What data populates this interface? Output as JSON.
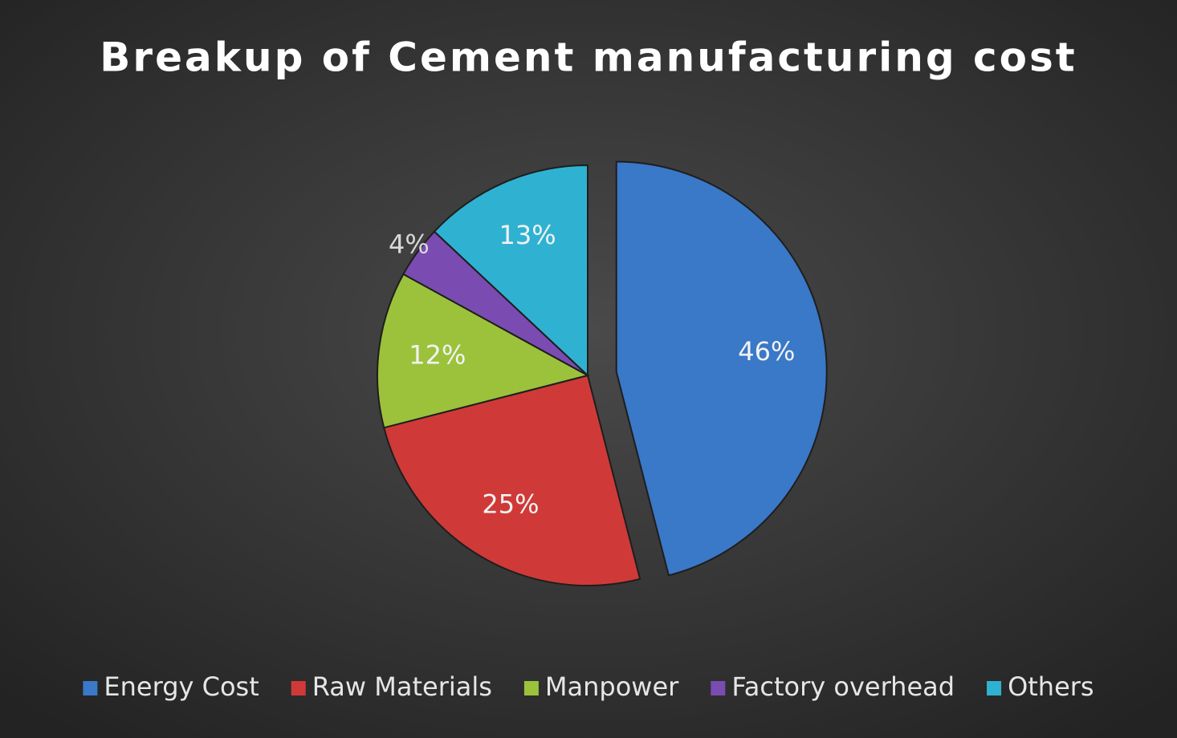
{
  "chart_data": {
    "type": "pie",
    "title": "Breakup of Cement manufacturing cost",
    "categories": [
      "Energy Cost",
      "Raw Materials",
      "Manpower",
      "Factory overhead",
      "Others"
    ],
    "values": [
      46,
      25,
      12,
      4,
      13
    ],
    "value_labels": [
      "46%",
      "25%",
      "12%",
      "4%",
      "13%"
    ],
    "colors": [
      "#3a78c8",
      "#cf3a38",
      "#9cc23c",
      "#7a4cb2",
      "#2fb2d2"
    ],
    "legend": "bottom"
  }
}
